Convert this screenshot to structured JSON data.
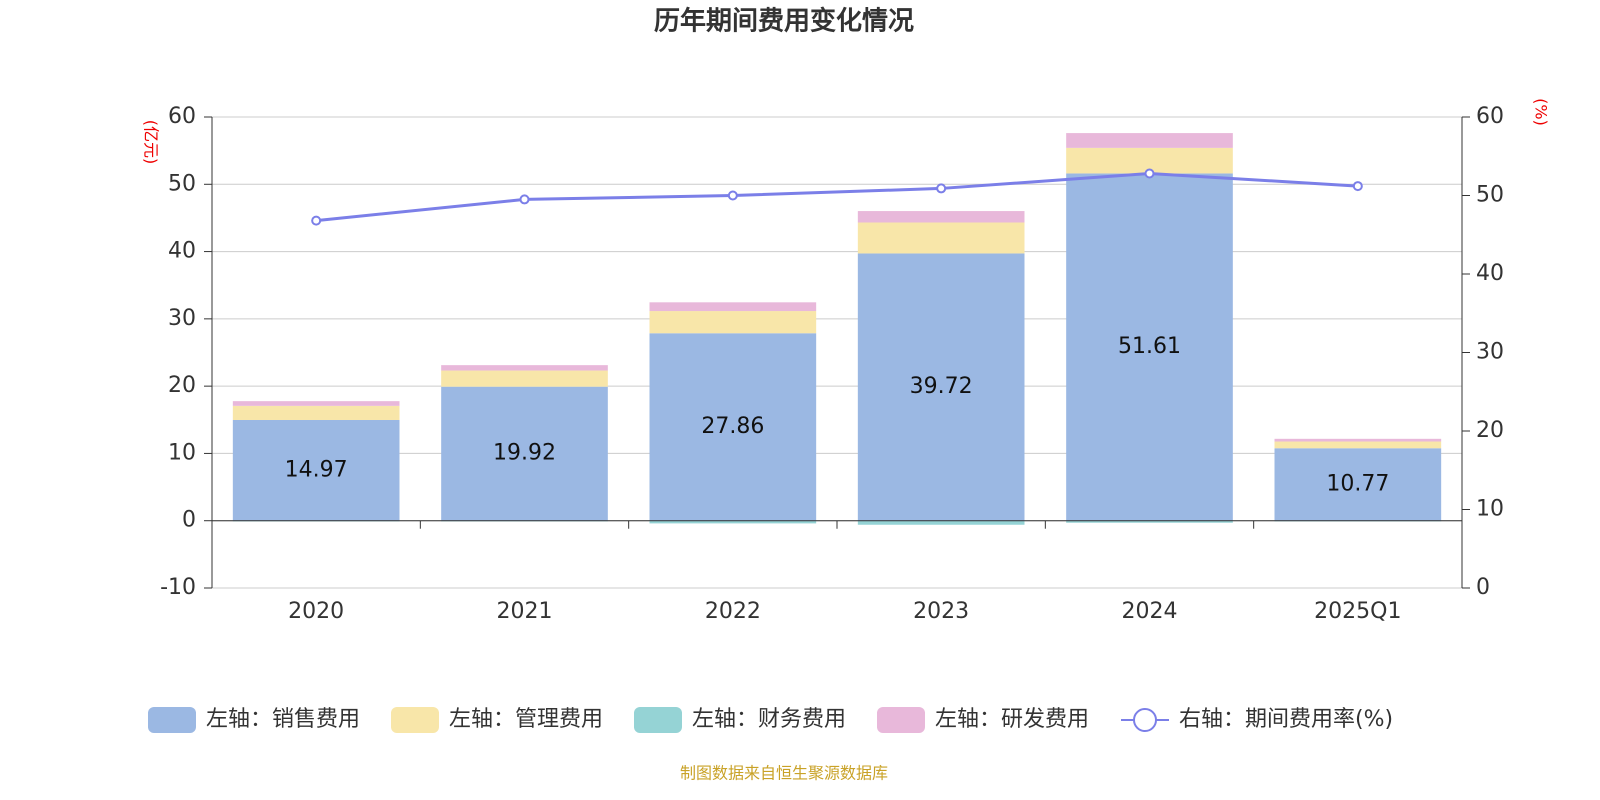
{
  "chart_data": {
    "type": "bar",
    "title": "历年期间费用变化情况",
    "y_label": "(亿元)",
    "y2_label": "(%)",
    "source": "制图数据来自恒生聚源数据库",
    "categories": [
      "2020",
      "2021",
      "2022",
      "2023",
      "2024",
      "2025Q1"
    ],
    "series": [
      {
        "name": "左轴：销售费用",
        "type": "bar",
        "color": "#9bb8e3",
        "show_labels": true,
        "values": [
          14.97,
          19.92,
          27.86,
          39.72,
          51.61,
          10.77
        ]
      },
      {
        "name": "左轴：管理费用",
        "type": "bar",
        "color": "#f8e6a9",
        "values": [
          2.1,
          2.4,
          3.3,
          4.6,
          3.8,
          1.0
        ]
      },
      {
        "name": "左轴：财务费用",
        "type": "bar",
        "color": "#95d3d5",
        "values": [
          -0.1,
          -0.1,
          -0.4,
          -0.6,
          -0.3,
          -0.1
        ]
      },
      {
        "name": "左轴：研发费用",
        "type": "bar",
        "color": "#e8b8da",
        "values": [
          0.7,
          0.8,
          1.3,
          1.7,
          2.2,
          0.4
        ]
      },
      {
        "name": "右轴：期间费用率(%)",
        "type": "line",
        "axis": "y2",
        "color": "#7b7fe8",
        "values": [
          46.8,
          49.5,
          50.0,
          50.9,
          52.8,
          51.2
        ]
      }
    ],
    "ylim": [
      -10,
      60
    ],
    "yticks": [
      -10,
      0,
      10,
      20,
      30,
      40,
      50,
      60
    ],
    "y2lim": [
      0,
      60
    ],
    "y2ticks": [
      0,
      10,
      20,
      30,
      40,
      50,
      60
    ],
    "grid": true,
    "legend": "bottom"
  }
}
